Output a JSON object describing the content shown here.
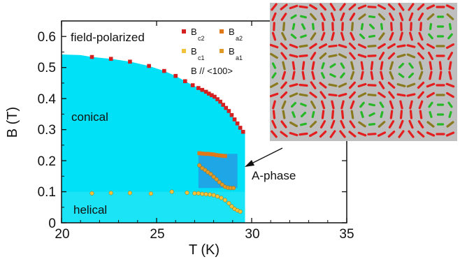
{
  "chart_data": {
    "type": "scatter",
    "xlabel": "T (K)",
    "ylabel": "B (T)",
    "xlim": [
      20,
      35
    ],
    "ylim": [
      0,
      0.65
    ],
    "x_ticks": [
      "20",
      "25",
      "30",
      "35"
    ],
    "y_ticks": [
      "0",
      "0.1",
      "0.2",
      "0.3",
      "0.4",
      "0.5",
      "0.6"
    ],
    "regions": [
      "field-polarized",
      "conical",
      "helical",
      "A-phase"
    ],
    "annotation": "B // <100>",
    "legend": [
      {
        "main": "B",
        "sub": "c2",
        "key": "Bc2"
      },
      {
        "main": "B",
        "sub": "a2",
        "key": "Ba2"
      },
      {
        "main": "B",
        "sub": "c1",
        "key": "Bc1"
      },
      {
        "main": "B",
        "sub": "a1",
        "key": "Ba1"
      }
    ],
    "colors": {
      "Bc2": "#d42020",
      "Ba2": "#e07818",
      "Bc1": "#f2c23a",
      "Ba1": "#e09a28",
      "conical": "#00e0f6",
      "a_phase": "#1ea6e6"
    },
    "series": [
      {
        "name": "Bc2",
        "points": [
          [
            21.6,
            0.534
          ],
          [
            22.6,
            0.528
          ],
          [
            23.6,
            0.519
          ],
          [
            24.6,
            0.505
          ],
          [
            25.4,
            0.489
          ],
          [
            26.0,
            0.473
          ],
          [
            26.5,
            0.456
          ],
          [
            26.9,
            0.443
          ],
          [
            27.2,
            0.434
          ],
          [
            27.4,
            0.428
          ],
          [
            27.6,
            0.422
          ],
          [
            27.75,
            0.416
          ],
          [
            27.9,
            0.411
          ],
          [
            28.05,
            0.406
          ],
          [
            28.2,
            0.398
          ],
          [
            28.35,
            0.39
          ],
          [
            28.5,
            0.38
          ],
          [
            28.65,
            0.37
          ],
          [
            28.8,
            0.36
          ],
          [
            28.95,
            0.347
          ],
          [
            29.1,
            0.333
          ],
          [
            29.25,
            0.32
          ],
          [
            29.4,
            0.306
          ],
          [
            29.55,
            0.293
          ]
        ]
      },
      {
        "name": "Ba2",
        "points": [
          [
            27.25,
            0.224
          ],
          [
            27.4,
            0.223
          ],
          [
            27.55,
            0.222
          ],
          [
            27.7,
            0.222
          ],
          [
            27.85,
            0.221
          ],
          [
            28.0,
            0.22
          ],
          [
            28.15,
            0.218
          ],
          [
            28.3,
            0.217
          ],
          [
            28.45,
            0.216
          ],
          [
            28.6,
            0.215
          ]
        ]
      },
      {
        "name": "Bc1",
        "points": [
          [
            21.6,
            0.095
          ],
          [
            22.6,
            0.096
          ],
          [
            23.6,
            0.096
          ],
          [
            24.7,
            0.094
          ],
          [
            25.8,
            0.1
          ],
          [
            26.6,
            0.097
          ],
          [
            27.0,
            0.095
          ],
          [
            27.2,
            0.095
          ],
          [
            27.4,
            0.093
          ],
          [
            27.6,
            0.092
          ],
          [
            27.8,
            0.091
          ],
          [
            28.0,
            0.089
          ],
          [
            28.2,
            0.085
          ],
          [
            28.4,
            0.08
          ],
          [
            28.6,
            0.073
          ],
          [
            28.8,
            0.063
          ],
          [
            28.95,
            0.053
          ],
          [
            29.1,
            0.045
          ],
          [
            29.25,
            0.04
          ],
          [
            29.4,
            0.036
          ]
        ]
      },
      {
        "name": "Ba1",
        "points": [
          [
            27.25,
            0.185
          ],
          [
            27.4,
            0.176
          ],
          [
            27.55,
            0.17
          ],
          [
            27.7,
            0.163
          ],
          [
            27.85,
            0.157
          ],
          [
            28.0,
            0.148
          ],
          [
            28.15,
            0.14
          ],
          [
            28.3,
            0.131
          ],
          [
            28.45,
            0.123
          ],
          [
            28.6,
            0.116
          ],
          [
            28.75,
            0.113
          ],
          [
            28.9,
            0.112
          ],
          [
            29.05,
            0.112
          ]
        ]
      }
    ]
  }
}
